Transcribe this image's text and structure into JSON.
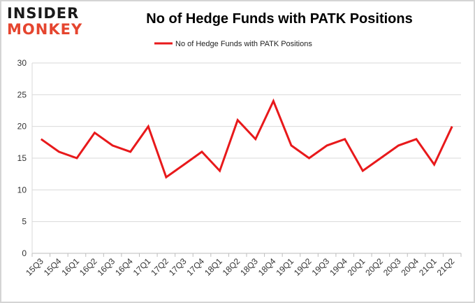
{
  "logo": {
    "line1": "INSIDER",
    "line2": "MONKEY"
  },
  "chart_data": {
    "type": "line",
    "title": "No of Hedge Funds with PATK Positions",
    "xlabel": "",
    "ylabel": "",
    "categories": [
      "15Q3",
      "15Q4",
      "16Q1",
      "16Q2",
      "16Q3",
      "16Q4",
      "17Q1",
      "17Q2",
      "17Q3",
      "17Q4",
      "18Q1",
      "18Q2",
      "18Q3",
      "18Q4",
      "19Q1",
      "19Q2",
      "19Q3",
      "19Q4",
      "20Q1",
      "20Q2",
      "20Q3",
      "20Q4",
      "21Q1",
      "21Q2"
    ],
    "series": [
      {
        "name": "No of Hedge Funds with PATK Positions",
        "color": "#e8191b",
        "values": [
          18,
          16,
          15,
          19,
          17,
          16,
          20,
          12,
          14,
          16,
          13,
          21,
          18,
          24,
          17,
          15,
          17,
          18,
          13,
          15,
          17,
          18,
          14,
          20
        ]
      }
    ],
    "ylim": [
      0,
      30
    ],
    "yticks": [
      0,
      5,
      10,
      15,
      20,
      25,
      30
    ],
    "grid": true,
    "legend": "top-center"
  }
}
